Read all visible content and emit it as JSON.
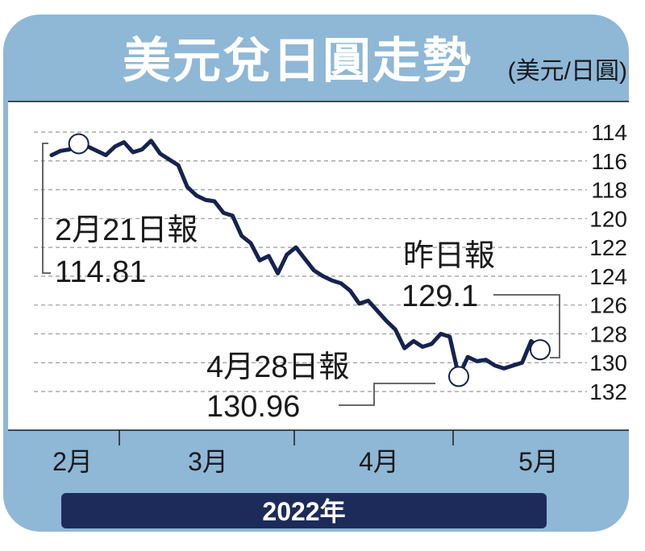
{
  "title": "美元兌日圓走勢",
  "unit": "(美元/日圓)",
  "footer": {
    "year": "2022年"
  },
  "colors": {
    "frame": "#8fb7d6",
    "line": "#15234f",
    "year_bar": "#1d2b5a",
    "grid": "#9a9a9a",
    "text": "#1a1a1a"
  },
  "chart_data": {
    "type": "line",
    "y_axis": {
      "ticks": [
        114,
        116,
        118,
        120,
        122,
        124,
        126,
        128,
        130,
        132
      ],
      "range": [
        113,
        133
      ],
      "inverted": true,
      "position": "right"
    },
    "x_axis": {
      "labels": [
        "2月",
        "3月",
        "4月",
        "5月"
      ]
    },
    "series": [
      {
        "values": [
          115.6,
          115.3,
          115.2,
          114.81,
          115.0,
          115.3,
          115.6,
          115.0,
          114.7,
          115.4,
          115.2,
          114.6,
          115.5,
          115.9,
          116.3,
          117.8,
          118.4,
          118.7,
          118.8,
          119.6,
          119.8,
          121.2,
          121.7,
          122.9,
          122.6,
          123.8,
          122.5,
          122.0,
          122.8,
          123.6,
          124.0,
          124.3,
          124.5,
          125.0,
          125.9,
          125.7,
          126.4,
          127.1,
          127.7,
          129.0,
          128.5,
          128.9,
          128.7,
          128.0,
          128.2,
          130.96,
          129.6,
          129.9,
          129.8,
          130.2,
          130.4,
          130.2,
          130.0,
          128.5,
          129.1
        ],
        "line_color": "#15234f"
      }
    ],
    "annotations": [
      {
        "id": "feb21",
        "label": "2月21日報",
        "value": "114.81",
        "point_index": 3
      },
      {
        "id": "apr28",
        "label": "4月28日報",
        "value": "130.96",
        "point_index": 45
      },
      {
        "id": "latest",
        "label": "昨日報",
        "value": "129.1",
        "point_index": 54
      }
    ]
  }
}
